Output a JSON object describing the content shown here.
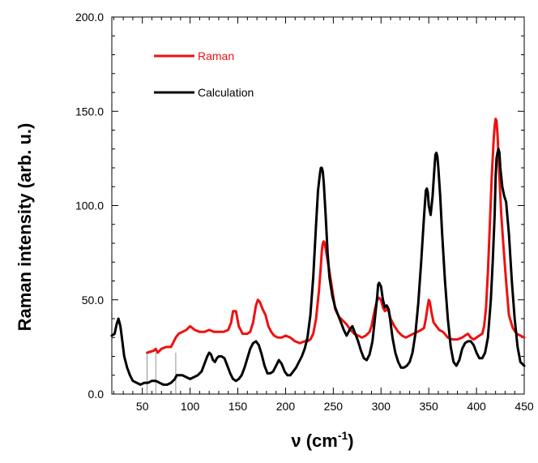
{
  "chart_data": {
    "type": "line",
    "title": "",
    "xlabel": "ν (cm",
    "xlabel_sup": "-1",
    "xlabel_end": ")",
    "ylabel": "Raman intensity (arb. u.)",
    "xlim": [
      18,
      450
    ],
    "ylim": [
      0,
      200
    ],
    "xticks": [
      50,
      100,
      150,
      200,
      250,
      300,
      350,
      400,
      450
    ],
    "xtick_labels": [
      "50",
      "100",
      "150",
      "200",
      "250",
      "300",
      "350",
      "400",
      "450"
    ],
    "yticks": [
      0,
      50,
      100,
      150,
      200
    ],
    "ytick_labels": [
      "0.0",
      "50.0",
      "100.0",
      "150.0",
      "200.0"
    ],
    "grid": false,
    "legend_position": "top-left",
    "markers_x": [
      55,
      64,
      85
    ],
    "series": [
      {
        "name": "Raman",
        "color": "#ee1111",
        "x": [
          55,
          62,
          64,
          66,
          70,
          75,
          80,
          85,
          88,
          92,
          96,
          100,
          105,
          110,
          115,
          120,
          125,
          130,
          135,
          140,
          143,
          145,
          148,
          151,
          155,
          160,
          163,
          166,
          169,
          171,
          173,
          176,
          179,
          182,
          185,
          188,
          192,
          196,
          200,
          205,
          210,
          215,
          220,
          223,
          226,
          229,
          232,
          235,
          237,
          238,
          239,
          240,
          241,
          243,
          246,
          249,
          252,
          256,
          260,
          264,
          268,
          272,
          276,
          280,
          284,
          288,
          290,
          292,
          294,
          296,
          298,
          300,
          302,
          304,
          306,
          308,
          310,
          314,
          318,
          322,
          326,
          330,
          334,
          338,
          342,
          345,
          347,
          349,
          350,
          351,
          353,
          355,
          358,
          361,
          365,
          370,
          375,
          380,
          385,
          388,
          391,
          394,
          397,
          400,
          403,
          406,
          408,
          410,
          412,
          414,
          416,
          418,
          419,
          420,
          421,
          422,
          424,
          426,
          428,
          431,
          434,
          438,
          442,
          446,
          450
        ],
        "y": [
          22,
          23,
          24,
          22,
          24,
          25,
          25,
          30,
          32,
          33,
          34,
          36,
          34,
          33,
          33,
          34,
          33,
          33,
          33,
          34,
          38,
          44,
          44,
          36,
          32,
          32,
          33,
          38,
          47,
          50,
          49,
          45,
          42,
          36,
          33,
          31,
          30,
          30,
          31,
          30,
          28,
          27,
          28,
          28,
          29,
          32,
          40,
          55,
          68,
          76,
          80,
          81,
          80,
          74,
          65,
          55,
          45,
          41,
          39,
          37,
          34,
          32,
          31,
          30,
          31,
          33,
          36,
          41,
          46,
          50,
          51,
          50,
          46,
          44,
          45,
          44,
          40,
          36,
          33,
          31,
          30,
          31,
          32,
          33,
          34,
          35,
          40,
          47,
          50,
          49,
          43,
          38,
          36,
          34,
          33,
          30,
          29,
          29,
          30,
          31,
          32,
          30,
          29,
          30,
          31,
          32,
          36,
          46,
          65,
          90,
          115,
          135,
          142,
          146,
          145,
          138,
          115,
          95,
          80,
          60,
          42,
          35,
          32,
          31,
          30
        ]
      },
      {
        "name": "Calculation",
        "color": "#000000",
        "x": [
          18,
          21,
          23,
          25,
          27,
          29,
          31,
          34,
          37,
          40,
          44,
          48,
          52,
          56,
          60,
          64,
          68,
          72,
          76,
          80,
          84,
          86,
          88,
          92,
          96,
          100,
          104,
          108,
          112,
          115,
          118,
          120,
          122,
          124,
          126,
          128,
          130,
          133,
          136,
          139,
          142,
          145,
          148,
          151,
          154,
          157,
          160,
          163,
          166,
          169,
          172,
          175,
          178,
          181,
          184,
          187,
          190,
          193,
          196,
          199,
          202,
          205,
          208,
          211,
          214,
          217,
          220,
          223,
          226,
          229,
          232,
          234,
          236,
          237,
          238,
          239,
          240,
          242,
          244,
          246,
          249,
          252,
          255,
          258,
          261,
          264,
          267,
          270,
          273,
          276,
          279,
          282,
          285,
          288,
          291,
          294,
          296,
          297,
          298,
          300,
          302,
          304,
          306,
          308,
          310,
          312,
          315,
          318,
          321,
          324,
          327,
          330,
          333,
          336,
          339,
          342,
          345,
          347,
          348,
          349,
          350,
          352,
          354,
          356,
          357,
          358,
          359,
          360,
          362,
          364,
          367,
          370,
          373,
          376,
          379,
          382,
          385,
          388,
          391,
          394,
          397,
          400,
          403,
          406,
          409,
          412,
          415,
          417,
          419,
          420,
          421,
          422,
          423,
          424,
          425,
          427,
          429,
          431,
          434,
          437,
          440,
          443,
          446,
          450
        ],
        "y": [
          31,
          32,
          37,
          40,
          36,
          28,
          20,
          14,
          10,
          7,
          6,
          5,
          6,
          6,
          7,
          7,
          6,
          5,
          5,
          6,
          8,
          10,
          10,
          10,
          9,
          8,
          9,
          10,
          12,
          16,
          20,
          22,
          21,
          18,
          17,
          19,
          20,
          20,
          19,
          15,
          11,
          8,
          7,
          8,
          10,
          14,
          19,
          24,
          27,
          28,
          26,
          21,
          15,
          11,
          11,
          12,
          15,
          18,
          16,
          12,
          10,
          10,
          12,
          14,
          17,
          20,
          24,
          30,
          42,
          62,
          90,
          108,
          117,
          120,
          120,
          118,
          112,
          95,
          75,
          62,
          52,
          46,
          42,
          38,
          34,
          31,
          34,
          36,
          32,
          28,
          23,
          19,
          18,
          21,
          28,
          42,
          52,
          58,
          59,
          57,
          50,
          46,
          47,
          45,
          38,
          30,
          22,
          17,
          14,
          14,
          15,
          17,
          22,
          32,
          48,
          70,
          94,
          108,
          109,
          107,
          100,
          95,
          105,
          120,
          127,
          128,
          126,
          120,
          105,
          85,
          60,
          40,
          25,
          17,
          15,
          18,
          24,
          27,
          28,
          28,
          26,
          22,
          19,
          19,
          22,
          30,
          50,
          70,
          95,
          115,
          125,
          128,
          130,
          128,
          120,
          110,
          105,
          102,
          85,
          60,
          40,
          25,
          17,
          15
        ]
      }
    ]
  }
}
